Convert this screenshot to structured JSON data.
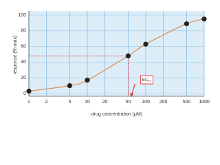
{
  "chart_data": {
    "type": "scatter",
    "x_label": "drug concentration (μM)",
    "y_label": "response (% max)",
    "x_log": true,
    "x": [
      1,
      5,
      10,
      50,
      100,
      500,
      1000
    ],
    "series": [
      {
        "name": "response",
        "color": "#222222",
        "line_color": "#e08a4a",
        "values": [
          3,
          10,
          17,
          48,
          63,
          89,
          95
        ]
      }
    ],
    "xlim": [
      1,
      1000
    ],
    "ylim": [
      0,
      100
    ],
    "xticks": [
      1,
      2,
      5,
      10,
      20,
      50,
      100,
      200,
      500,
      1000
    ],
    "yticks": [
      0,
      20,
      40,
      60,
      80,
      100
    ],
    "grid": true,
    "annotation": {
      "text": "EC₅₀",
      "point": 3,
      "color": "#e02020"
    }
  }
}
